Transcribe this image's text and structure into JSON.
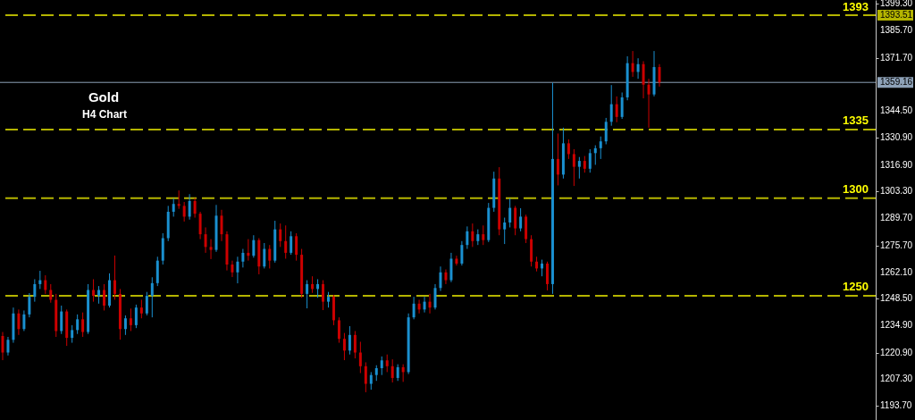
{
  "chart_data": {
    "type": "candlestick",
    "title": "Gold",
    "subtitle": "H4 Chart",
    "categories": [
      null,
      null,
      null,
      null,
      null,
      null,
      null,
      null,
      null,
      null,
      null,
      null,
      null,
      null,
      null,
      null,
      null,
      null,
      null,
      null,
      null,
      null,
      null,
      null,
      null,
      null,
      null,
      null,
      null,
      null,
      null,
      null,
      null,
      null,
      null,
      null,
      null,
      null,
      null,
      null,
      null,
      null,
      null,
      null,
      null,
      null,
      null,
      null,
      null,
      null,
      null,
      null,
      null,
      null,
      null,
      null,
      null,
      null,
      null,
      null,
      null,
      null,
      null,
      null,
      null,
      null,
      null,
      null,
      null,
      null,
      null,
      null,
      null,
      null,
      null,
      null,
      null,
      null,
      null,
      null,
      null,
      null,
      null,
      null,
      null,
      null,
      null,
      null,
      null,
      null,
      null,
      null,
      null,
      null,
      null,
      null,
      null,
      null,
      null,
      null,
      null,
      null,
      null,
      null,
      null,
      null,
      null,
      null,
      null,
      null,
      null,
      null,
      null,
      null,
      null,
      null,
      null,
      null,
      null,
      null,
      null,
      null,
      null,
      null,
      null,
      null,
      null,
      null,
      null,
      null,
      null,
      null,
      null,
      null,
      null,
      null,
      null,
      null,
      null,
      null,
      null,
      null,
      null,
      null,
      null,
      null,
      null,
      null,
      null,
      null,
      null,
      null,
      null,
      null,
      null,
      null,
      null,
      null,
      null,
      null,
      null,
      null,
      null,
      null
    ],
    "ohlc": [
      [
        1229.5,
        1231.5,
        1217.1,
        1221.0
      ],
      [
        1221.0,
        1229.0,
        1219.5,
        1227.5
      ],
      [
        1227.5,
        1244.0,
        1226.0,
        1241.0
      ],
      [
        1241.0,
        1243.0,
        1230.0,
        1233.0
      ],
      [
        1233.0,
        1242.5,
        1232.0,
        1240.5
      ],
      [
        1240.5,
        1251.4,
        1239.0,
        1249.5
      ],
      [
        1249.5,
        1258.5,
        1247.0,
        1256.0
      ],
      [
        1256.0,
        1262.8,
        1253.5,
        1258.0
      ],
      [
        1258.0,
        1260.5,
        1251.0,
        1253.0
      ],
      [
        1253.0,
        1256.0,
        1246.5,
        1248.0
      ],
      [
        1248.0,
        1251.0,
        1229.0,
        1232.0
      ],
      [
        1232.0,
        1245.0,
        1230.5,
        1242.0
      ],
      [
        1242.0,
        1243.0,
        1224.4,
        1228.5
      ],
      [
        1228.5,
        1235.0,
        1226.0,
        1232.5
      ],
      [
        1232.5,
        1240.5,
        1230.5,
        1238.0
      ],
      [
        1238.0,
        1241.5,
        1229.0,
        1231.5
      ],
      [
        1231.5,
        1256.0,
        1230.5,
        1253.0
      ],
      [
        1253.0,
        1258.5,
        1247.0,
        1250.0
      ],
      [
        1250.0,
        1255.0,
        1246.0,
        1253.0
      ],
      [
        1253.0,
        1256.0,
        1242.5,
        1245.0
      ],
      [
        1245.0,
        1261.5,
        1244.0,
        1258.0
      ],
      [
        1258.0,
        1270.6,
        1248.0,
        1251.0
      ],
      [
        1251.0,
        1253.5,
        1227.6,
        1233.0
      ],
      [
        1233.0,
        1240.0,
        1230.0,
        1238.5
      ],
      [
        1238.5,
        1243.5,
        1232.0,
        1235.0
      ],
      [
        1235.0,
        1245.5,
        1233.5,
        1244.0
      ],
      [
        1244.0,
        1248.0,
        1238.5,
        1241.0
      ],
      [
        1241.0,
        1252.0,
        1240.0,
        1250.0
      ],
      [
        1250.0,
        1259.5,
        1239.0,
        1256.5
      ],
      [
        1256.5,
        1270.0,
        1255.0,
        1268.0
      ],
      [
        1268.0,
        1282.0,
        1266.0,
        1279.5
      ],
      [
        1279.5,
        1296.0,
        1278.0,
        1293.0
      ],
      [
        1293.0,
        1299.8,
        1290.5,
        1297.0
      ],
      [
        1297.0,
        1303.9,
        1294.5,
        1296.0
      ],
      [
        1296.0,
        1298.0,
        1288.0,
        1290.5
      ],
      [
        1290.5,
        1302.0,
        1289.0,
        1298.5
      ],
      [
        1298.5,
        1300.0,
        1290.0,
        1292.0
      ],
      [
        1292.0,
        1293.0,
        1279.0,
        1281.5
      ],
      [
        1281.5,
        1285.0,
        1272.0,
        1275.0
      ],
      [
        1275.0,
        1279.0,
        1268.8,
        1273.5
      ],
      [
        1273.5,
        1296.5,
        1272.5,
        1291.0
      ],
      [
        1291.0,
        1294.0,
        1278.0,
        1281.5
      ],
      [
        1281.5,
        1283.0,
        1263.0,
        1266.0
      ],
      [
        1266.0,
        1268.0,
        1259.6,
        1262.0
      ],
      [
        1262.0,
        1270.0,
        1256.4,
        1267.5
      ],
      [
        1267.5,
        1274.0,
        1264.5,
        1272.0
      ],
      [
        1272.0,
        1279.0,
        1268.0,
        1270.5
      ],
      [
        1270.5,
        1281.0,
        1269.5,
        1278.5
      ],
      [
        1278.5,
        1279.5,
        1261.0,
        1265.0
      ],
      [
        1265.0,
        1277.0,
        1264.0,
        1274.0
      ],
      [
        1274.0,
        1276.0,
        1264.0,
        1268.0
      ],
      [
        1268.0,
        1288.4,
        1267.0,
        1284.0
      ],
      [
        1284.0,
        1287.0,
        1275.0,
        1278.0
      ],
      [
        1278.0,
        1286.0,
        1269.0,
        1272.0
      ],
      [
        1272.0,
        1283.0,
        1271.0,
        1280.5
      ],
      [
        1280.5,
        1282.0,
        1268.0,
        1271.0
      ],
      [
        1271.0,
        1274.0,
        1249.0,
        1251.0
      ],
      [
        1251.0,
        1258.0,
        1243.6,
        1256.0
      ],
      [
        1256.0,
        1260.0,
        1251.5,
        1253.5
      ],
      [
        1253.5,
        1258.5,
        1249.0,
        1256.0
      ],
      [
        1256.0,
        1258.0,
        1242.7,
        1247.0
      ],
      [
        1247.0,
        1252.0,
        1244.0,
        1249.5
      ],
      [
        1249.5,
        1250.5,
        1235.0,
        1237.5
      ],
      [
        1237.5,
        1239.0,
        1226.0,
        1228.0
      ],
      [
        1228.0,
        1231.0,
        1217.1,
        1222.0
      ],
      [
        1222.0,
        1234.5,
        1220.0,
        1230.0
      ],
      [
        1230.0,
        1232.0,
        1218.0,
        1221.0
      ],
      [
        1221.0,
        1226.5,
        1210.5,
        1214.0
      ],
      [
        1214.0,
        1216.0,
        1200.7,
        1205.0
      ],
      [
        1205.0,
        1211.0,
        1202.0,
        1209.5
      ],
      [
        1209.5,
        1214.5,
        1206.5,
        1213.0
      ],
      [
        1213.0,
        1219.0,
        1209.5,
        1217.0
      ],
      [
        1217.0,
        1220.0,
        1211.0,
        1214.0
      ],
      [
        1214.0,
        1217.5,
        1205.7,
        1208.0
      ],
      [
        1208.0,
        1215.0,
        1206.5,
        1213.5
      ],
      [
        1213.5,
        1215.0,
        1206.0,
        1211.0
      ],
      [
        1211.0,
        1241.0,
        1210.0,
        1239.0
      ],
      [
        1239.0,
        1249.5,
        1238.0,
        1246.0
      ],
      [
        1246.0,
        1248.0,
        1241.0,
        1243.0
      ],
      [
        1243.0,
        1249.5,
        1241.5,
        1247.0
      ],
      [
        1247.0,
        1251.0,
        1241.0,
        1244.0
      ],
      [
        1244.0,
        1256.0,
        1243.0,
        1254.0
      ],
      [
        1254.0,
        1265.0,
        1252.5,
        1262.0
      ],
      [
        1262.0,
        1263.5,
        1256.0,
        1258.0
      ],
      [
        1258.0,
        1272.0,
        1257.0,
        1269.0
      ],
      [
        1269.0,
        1270.5,
        1265.5,
        1266.5
      ],
      [
        1266.5,
        1278.0,
        1265.5,
        1276.0
      ],
      [
        1276.0,
        1285.5,
        1274.0,
        1283.0
      ],
      [
        1283.0,
        1287.0,
        1275.0,
        1278.0
      ],
      [
        1278.0,
        1284.0,
        1276.0,
        1281.5
      ],
      [
        1281.5,
        1286.0,
        1276.0,
        1278.5
      ],
      [
        1278.5,
        1297.5,
        1277.5,
        1295.0
      ],
      [
        1295.0,
        1313.5,
        1293.0,
        1310.0
      ],
      [
        1310.0,
        1315.8,
        1281.0,
        1284.0
      ],
      [
        1284.0,
        1290.0,
        1276.5,
        1287.5
      ],
      [
        1287.5,
        1299.8,
        1285.0,
        1295.0
      ],
      [
        1295.0,
        1296.0,
        1281.0,
        1284.5
      ],
      [
        1284.5,
        1294.8,
        1283.0,
        1290.5
      ],
      [
        1290.5,
        1291.5,
        1277.0,
        1279.0
      ],
      [
        1279.0,
        1281.0,
        1265.0,
        1267.5
      ],
      [
        1267.5,
        1270.0,
        1262.5,
        1264.0
      ],
      [
        1264.0,
        1268.5,
        1260.0,
        1266.5
      ],
      [
        1266.5,
        1267.5,
        1252.8,
        1256.0
      ],
      [
        1256.0,
        1359.0,
        1251.0,
        1320.0
      ],
      [
        1320.0,
        1333.0,
        1306.5,
        1312.0
      ],
      [
        1312.0,
        1336.0,
        1310.0,
        1328.0
      ],
      [
        1328.0,
        1330.0,
        1320.0,
        1322.5
      ],
      [
        1322.5,
        1325.0,
        1306.2,
        1316.0
      ],
      [
        1316.0,
        1321.0,
        1310.0,
        1319.0
      ],
      [
        1319.0,
        1321.5,
        1313.0,
        1315.0
      ],
      [
        1315.0,
        1325.0,
        1313.0,
        1323.0
      ],
      [
        1323.0,
        1327.0,
        1317.0,
        1325.5
      ],
      [
        1325.5,
        1331.5,
        1320.0,
        1329.0
      ],
      [
        1329.0,
        1341.0,
        1327.5,
        1339.0
      ],
      [
        1339.0,
        1357.8,
        1337.0,
        1348.0
      ],
      [
        1348.0,
        1352.0,
        1338.8,
        1341.5
      ],
      [
        1341.5,
        1354.0,
        1340.5,
        1351.5
      ],
      [
        1351.5,
        1372.5,
        1350.0,
        1369.0
      ],
      [
        1369.0,
        1375.2,
        1362.0,
        1364.5
      ],
      [
        1364.5,
        1371.5,
        1361.0,
        1368.5
      ],
      [
        1368.5,
        1370.0,
        1351.0,
        1358.0
      ],
      [
        1358.0,
        1361.0,
        1336.0,
        1353.0
      ],
      [
        1353.0,
        1375.2,
        1352.0,
        1367.0
      ],
      [
        1367.0,
        1368.5,
        1357.0,
        1359.2
      ],
      null,
      null,
      null,
      null,
      null,
      null,
      null,
      null,
      null,
      null,
      null,
      null,
      null,
      null,
      null,
      null,
      null,
      null,
      null,
      null,
      null,
      null,
      null,
      null,
      null,
      null,
      null,
      null,
      null,
      null,
      null,
      null,
      null,
      null,
      null,
      null,
      null,
      null,
      null,
      null
    ],
    "colors": [
      "#cc0000",
      "#1a90d0",
      "#1a90d0",
      "#cc0000",
      "#1a90d0",
      "#1a90d0",
      "#1a90d0",
      "#1a90d0",
      "#cc0000",
      "#cc0000",
      "#cc0000",
      "#1a90d0",
      "#cc0000",
      "#1a90d0",
      "#1a90d0",
      "#cc0000",
      "#1a90d0",
      "#cc0000",
      "#1a90d0",
      "#cc0000",
      "#1a90d0",
      "#cc0000",
      "#cc0000",
      "#1a90d0",
      "#cc0000",
      "#1a90d0",
      "#cc0000",
      "#1a90d0",
      "#1a90d0",
      "#1a90d0",
      "#1a90d0",
      "#1a90d0",
      "#1a90d0",
      "#cc0000",
      "#cc0000",
      "#1a90d0",
      "#cc0000",
      "#cc0000",
      "#cc0000",
      "#cc0000",
      "#1a90d0",
      "#cc0000",
      "#cc0000",
      "#cc0000",
      "#1a90d0",
      "#1a90d0",
      "#cc0000",
      "#1a90d0",
      "#cc0000",
      "#1a90d0",
      "#cc0000",
      "#1a90d0",
      "#cc0000",
      "#cc0000",
      "#1a90d0",
      "#cc0000",
      "#cc0000",
      "#1a90d0",
      "#cc0000",
      "#1a90d0",
      "#cc0000",
      "#1a90d0",
      "#cc0000",
      "#cc0000",
      "#cc0000",
      "#1a90d0",
      "#cc0000",
      "#cc0000",
      "#cc0000",
      "#1a90d0",
      "#1a90d0",
      "#1a90d0",
      "#cc0000",
      "#cc0000",
      "#1a90d0",
      "#cc0000",
      "#1a90d0",
      "#1a90d0",
      "#cc0000",
      "#1a90d0",
      "#cc0000",
      "#1a90d0",
      "#1a90d0",
      "#cc0000",
      "#1a90d0",
      "#cc0000",
      "#1a90d0",
      "#1a90d0",
      "#cc0000",
      "#1a90d0",
      "#cc0000",
      "#1a90d0",
      "#1a90d0",
      "#cc0000",
      "#1a90d0",
      "#1a90d0",
      "#cc0000",
      "#1a90d0",
      "#cc0000",
      "#cc0000",
      "#cc0000",
      "#1a90d0",
      "#cc0000",
      "#1a90d0",
      "#cc0000",
      "#1a90d0",
      "#cc0000",
      "#cc0000",
      "#1a90d0",
      "#cc0000",
      "#1a90d0",
      "#1a90d0",
      "#1a90d0",
      "#1a90d0",
      "#1a90d0",
      "#cc0000",
      "#1a90d0",
      "#1a90d0",
      "#cc0000",
      "#1a90d0",
      "#cc0000",
      "#cc0000",
      "#1a90d0",
      "#cc0000",
      null,
      null,
      null,
      null,
      null,
      null,
      null,
      null,
      null,
      null,
      null,
      null,
      null,
      null,
      null,
      null,
      null,
      null,
      null,
      null,
      null,
      null,
      null,
      null,
      null,
      null,
      null,
      null,
      null,
      null,
      null,
      null,
      null,
      null,
      null,
      null,
      null,
      null,
      null,
      null
    ],
    "ylim": [
      1186.5,
      1401.3
    ],
    "yticks": [
      {
        "value": 1399.3,
        "label": "1399.30"
      },
      {
        "value": 1385.7,
        "label": "1385.70"
      },
      {
        "value": 1371.7,
        "label": "1371.70"
      },
      {
        "value": 1344.5,
        "label": "1344.50"
      },
      {
        "value": 1330.9,
        "label": "1330.90"
      },
      {
        "value": 1316.9,
        "label": "1316.90"
      },
      {
        "value": 1303.3,
        "label": "1303.30"
      },
      {
        "value": 1289.7,
        "label": "1289.70"
      },
      {
        "value": 1275.7,
        "label": "1275.70"
      },
      {
        "value": 1262.1,
        "label": "1262.10"
      },
      {
        "value": 1248.5,
        "label": "1248.50"
      },
      {
        "value": 1234.9,
        "label": "1234.90"
      },
      {
        "value": 1220.9,
        "label": "1220.90"
      },
      {
        "value": 1207.3,
        "label": "1207.30"
      },
      {
        "value": 1193.7,
        "label": "1193.70"
      }
    ],
    "ref_lines": [
      {
        "axis": "y",
        "value": 1393.51,
        "label": "1393.51",
        "color": "#b4b400",
        "line_style": "dashed"
      },
      {
        "axis": "y",
        "value": 1359.16,
        "label": "1359.16",
        "color": "#8ea2b8",
        "line_style": "solid"
      },
      {
        "axis": "y",
        "value": 1335,
        "color": "#b4b400",
        "line_style": "dashed"
      },
      {
        "axis": "y",
        "value": 1300,
        "color": "#b4b400",
        "line_style": "dashed"
      },
      {
        "axis": "y",
        "value": 1250,
        "color": "#b4b400",
        "line_style": "dashed"
      }
    ],
    "annotations": [
      {
        "text": "1393",
        "y": 1393
      },
      {
        "text": "1335",
        "y": 1335
      },
      {
        "text": "1300",
        "y": 1300
      },
      {
        "text": "1250",
        "y": 1250
      }
    ],
    "tick_labels": "y"
  }
}
